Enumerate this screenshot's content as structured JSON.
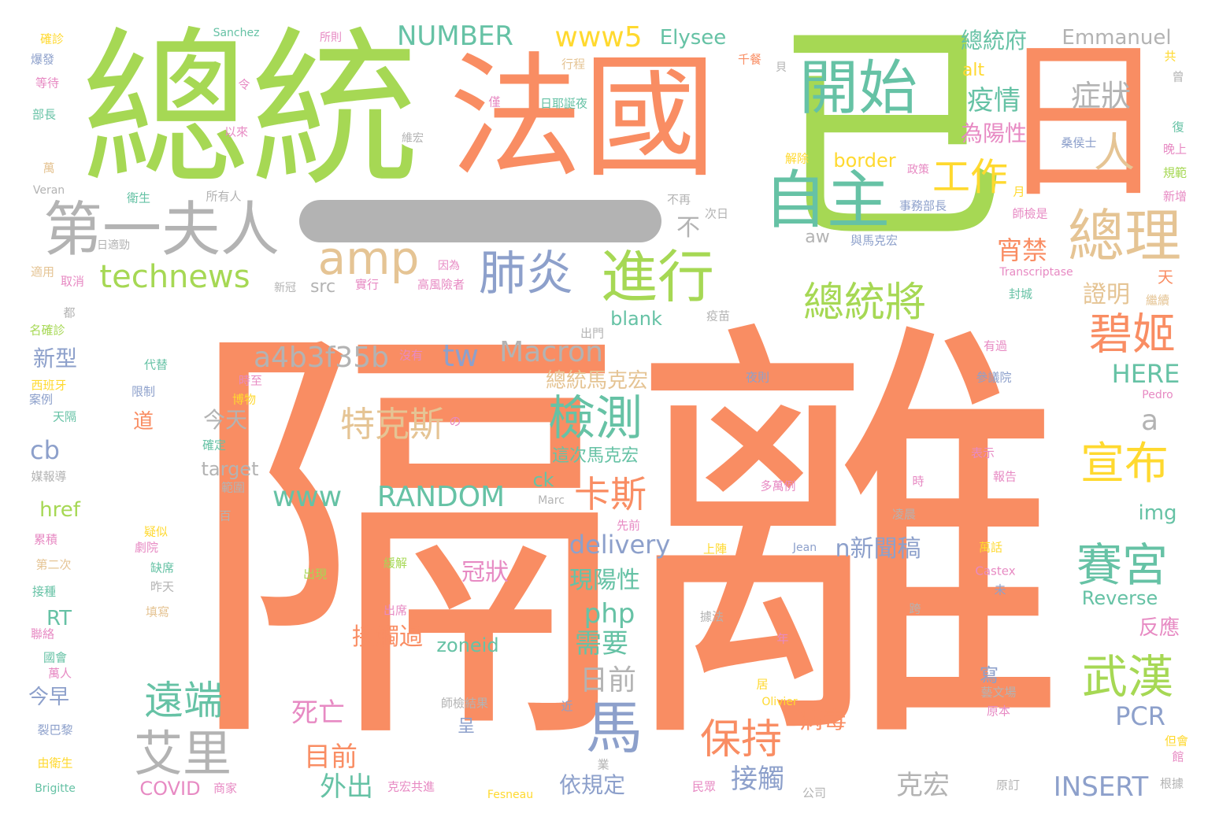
{
  "palette": {
    "orange": "#f98d63",
    "green": "#a6d854",
    "teal": "#66c2a5",
    "blue": "#8da0cb",
    "pink": "#e78ac3",
    "yellow": "#ffd92f",
    "tan": "#e5c494",
    "gray": "#b3b3b3"
  },
  "words": [
    {
      "text": "隔離",
      "color": "orange"
    },
    {
      "text": "已",
      "color": "green"
    },
    {
      "text": "總統",
      "color": "green"
    },
    {
      "text": "法國",
      "color": "orange"
    },
    {
      "text": "日",
      "color": "orange"
    },
    {
      "text": "開始",
      "color": "teal"
    },
    {
      "text": "自主",
      "color": "teal"
    },
    {
      "text": "第一夫人",
      "color": "gray"
    },
    {
      "text": "amp",
      "color": "tan"
    },
    {
      "text": "總理",
      "color": "tan"
    },
    {
      "text": "工作",
      "color": "yellow"
    },
    {
      "text": "人",
      "color": "tan"
    },
    {
      "text": "進行",
      "color": "green"
    },
    {
      "text": "肺炎",
      "color": "blue"
    },
    {
      "text": "technews",
      "color": "green"
    },
    {
      "text": "總統將",
      "color": "green"
    },
    {
      "text": "碧姬",
      "color": "orange"
    },
    {
      "text": "宵禁",
      "color": "orange"
    },
    {
      "text": "證明",
      "color": "tan"
    },
    {
      "text": "症狀",
      "color": "gray"
    },
    {
      "text": "疫情",
      "color": "teal"
    },
    {
      "text": "為陽性",
      "color": "pink"
    },
    {
      "text": "border",
      "color": "yellow"
    },
    {
      "text": "總統府",
      "color": "teal"
    },
    {
      "text": "alt",
      "color": "yellow"
    },
    {
      "text": "Emmanuel",
      "color": "gray"
    },
    {
      "text": "NUMBER",
      "color": "teal"
    },
    {
      "text": "www5",
      "color": "yellow"
    },
    {
      "text": "Elysee",
      "color": "teal"
    },
    {
      "text": "a4b3f35b",
      "color": "gray"
    },
    {
      "text": "tw",
      "color": "blue"
    },
    {
      "text": "Macron",
      "color": "gray"
    },
    {
      "text": "總統馬克宏",
      "color": "tan"
    },
    {
      "text": "檢測",
      "color": "teal"
    },
    {
      "text": "特克斯",
      "color": "tan"
    },
    {
      "text": "宣布",
      "color": "yellow"
    },
    {
      "text": "HERE",
      "color": "teal"
    },
    {
      "text": "a",
      "color": "gray"
    },
    {
      "text": "www",
      "color": "teal"
    },
    {
      "text": "RANDOM",
      "color": "teal"
    },
    {
      "text": "卡斯",
      "color": "orange"
    },
    {
      "text": "賽宮",
      "color": "teal"
    },
    {
      "text": "武漢",
      "color": "green"
    },
    {
      "text": "delivery",
      "color": "blue"
    },
    {
      "text": "n新聞稿",
      "color": "blue"
    },
    {
      "text": "現陽性",
      "color": "teal"
    },
    {
      "text": "冠狀",
      "color": "pink"
    },
    {
      "text": "馬",
      "color": "blue"
    },
    {
      "text": "日前",
      "color": "gray"
    },
    {
      "text": "需要",
      "color": "teal"
    },
    {
      "text": "php",
      "color": "teal"
    },
    {
      "text": "遠端",
      "color": "teal"
    },
    {
      "text": "艾里",
      "color": "gray"
    },
    {
      "text": "保持",
      "color": "orange"
    },
    {
      "text": "接觸",
      "color": "blue"
    },
    {
      "text": "病毒",
      "color": "orange"
    },
    {
      "text": "PCR",
      "color": "blue"
    },
    {
      "text": "INSERT",
      "color": "blue"
    },
    {
      "text": "克宏",
      "color": "gray"
    },
    {
      "text": "目前",
      "color": "orange"
    },
    {
      "text": "外出",
      "color": "teal"
    },
    {
      "text": "依規定",
      "color": "blue"
    },
    {
      "text": "死亡",
      "color": "pink"
    },
    {
      "text": "接觸過",
      "color": "orange"
    },
    {
      "text": "zoneid",
      "color": "teal"
    },
    {
      "text": "COVID",
      "color": "pink"
    },
    {
      "text": "cb",
      "color": "blue"
    },
    {
      "text": "href",
      "color": "green"
    },
    {
      "text": "RT",
      "color": "teal"
    },
    {
      "text": "今早",
      "color": "blue"
    },
    {
      "text": "新型",
      "color": "blue"
    },
    {
      "text": "今天",
      "color": "gray"
    },
    {
      "text": "target",
      "color": "gray"
    },
    {
      "text": "ck",
      "color": "teal"
    },
    {
      "text": "img",
      "color": "teal"
    },
    {
      "text": "Reverse",
      "color": "teal"
    },
    {
      "text": "反應",
      "color": "pink"
    },
    {
      "text": "blank",
      "color": "teal"
    },
    {
      "text": "src",
      "color": "gray"
    },
    {
      "text": "aw",
      "color": "gray"
    },
    {
      "text": "不",
      "color": "gray"
    },
    {
      "text": "Sanchez",
      "color": "teal"
    },
    {
      "text": "所則",
      "color": "pink"
    },
    {
      "text": "確診",
      "color": "yellow"
    },
    {
      "text": "爆發",
      "color": "blue"
    },
    {
      "text": "等待",
      "color": "pink"
    },
    {
      "text": "部長",
      "color": "teal"
    },
    {
      "text": "行程",
      "color": "tan"
    },
    {
      "text": "日耶誕夜",
      "color": "teal"
    },
    {
      "text": "千餐",
      "color": "orange"
    },
    {
      "text": "以來",
      "color": "pink"
    },
    {
      "text": "維宏",
      "color": "gray"
    },
    {
      "text": "桑侯士",
      "color": "blue"
    },
    {
      "text": "Veran",
      "color": "gray"
    },
    {
      "text": "衛生",
      "color": "teal"
    },
    {
      "text": "所有人",
      "color": "gray"
    },
    {
      "text": "解除",
      "color": "yellow"
    },
    {
      "text": "政策",
      "color": "pink"
    },
    {
      "text": "事務部長",
      "color": "blue"
    },
    {
      "text": "與馬克宏",
      "color": "blue"
    },
    {
      "text": "新冠",
      "color": "gray"
    },
    {
      "text": "實行",
      "color": "pink"
    },
    {
      "text": "高風險者",
      "color": "pink"
    },
    {
      "text": "因為",
      "color": "pink"
    },
    {
      "text": "Transcriptase",
      "color": "pink"
    },
    {
      "text": "封城",
      "color": "teal"
    },
    {
      "text": "名確診",
      "color": "green"
    },
    {
      "text": "西班牙",
      "color": "yellow"
    },
    {
      "text": "案例",
      "color": "blue"
    },
    {
      "text": "天隔",
      "color": "teal"
    },
    {
      "text": "媒報導",
      "color": "gray"
    },
    {
      "text": "累積",
      "color": "pink"
    },
    {
      "text": "第二次",
      "color": "tan"
    },
    {
      "text": "接種",
      "color": "teal"
    },
    {
      "text": "聯絡",
      "color": "pink"
    },
    {
      "text": "國會",
      "color": "teal"
    },
    {
      "text": "萬人",
      "color": "pink"
    },
    {
      "text": "裂巴黎",
      "color": "blue"
    },
    {
      "text": "由衛生",
      "color": "yellow"
    },
    {
      "text": "Brigitte",
      "color": "teal"
    },
    {
      "text": "代替",
      "color": "teal"
    },
    {
      "text": "限制",
      "color": "blue"
    },
    {
      "text": "時至",
      "color": "pink"
    },
    {
      "text": "博物",
      "color": "yellow"
    },
    {
      "text": "道",
      "color": "orange"
    },
    {
      "text": "確定",
      "color": "teal"
    },
    {
      "text": "範圍",
      "color": "gray"
    },
    {
      "text": "疑似",
      "color": "yellow"
    },
    {
      "text": "劇院",
      "color": "pink"
    },
    {
      "text": "缺席",
      "color": "teal"
    },
    {
      "text": "昨天",
      "color": "gray"
    },
    {
      "text": "填寫",
      "color": "tan"
    },
    {
      "text": "出現",
      "color": "green"
    },
    {
      "text": "緩解",
      "color": "green"
    },
    {
      "text": "出席",
      "color": "pink"
    },
    {
      "text": "師檢結果",
      "color": "gray"
    },
    {
      "text": "呈",
      "color": "blue"
    },
    {
      "text": "Marc",
      "color": "gray"
    },
    {
      "text": "先前",
      "color": "pink"
    },
    {
      "text": "上陣",
      "color": "yellow"
    },
    {
      "text": "多萬例",
      "color": "pink"
    },
    {
      "text": "Jean",
      "color": "blue"
    },
    {
      "text": "據法",
      "color": "gray"
    },
    {
      "text": "年",
      "color": "pink"
    },
    {
      "text": "Olivier",
      "color": "yellow"
    },
    {
      "text": "凌晨",
      "color": "gray"
    },
    {
      "text": "Castex",
      "color": "pink"
    },
    {
      "text": "報告",
      "color": "pink"
    },
    {
      "text": "表示",
      "color": "pink"
    },
    {
      "text": "Pedro",
      "color": "pink"
    },
    {
      "text": "原本",
      "color": "pink"
    },
    {
      "text": "根據",
      "color": "gray"
    },
    {
      "text": "Fesneau",
      "color": "yellow"
    },
    {
      "text": "民眾",
      "color": "pink"
    },
    {
      "text": "原訂",
      "color": "gray"
    },
    {
      "text": "公司",
      "color": "gray"
    },
    {
      "text": "商家",
      "color": "pink"
    },
    {
      "text": "克宏共進",
      "color": "pink"
    },
    {
      "text": "百",
      "color": "gray"
    },
    {
      "text": "月",
      "color": "yellow"
    },
    {
      "text": "師檢是",
      "color": "pink"
    },
    {
      "text": "有過",
      "color": "pink"
    },
    {
      "text": "繼續",
      "color": "tan"
    },
    {
      "text": "夜則",
      "color": "blue"
    },
    {
      "text": "參議院",
      "color": "blue"
    },
    {
      "text": "天",
      "color": "orange"
    },
    {
      "text": "新增",
      "color": "pink"
    },
    {
      "text": "規範",
      "color": "green"
    },
    {
      "text": "晚上",
      "color": "pink"
    },
    {
      "text": "復",
      "color": "teal"
    },
    {
      "text": "疫苗",
      "color": "gray"
    },
    {
      "text": "出門",
      "color": "gray"
    },
    {
      "text": "沒有",
      "color": "pink"
    },
    {
      "text": "這次馬克宏",
      "color": "teal"
    },
    {
      "text": "日適勁",
      "color": "gray"
    },
    {
      "text": "適用",
      "color": "tan"
    },
    {
      "text": "取消",
      "color": "pink"
    },
    {
      "text": "都",
      "color": "gray"
    },
    {
      "text": "不再",
      "color": "gray"
    },
    {
      "text": "次日",
      "color": "gray"
    },
    {
      "text": "萬",
      "color": "tan"
    },
    {
      "text": "令",
      "color": "pink"
    },
    {
      "text": "貝",
      "color": "gray"
    },
    {
      "text": "僅",
      "color": "pink"
    },
    {
      "text": "共",
      "color": "yellow"
    },
    {
      "text": "曾",
      "color": "gray"
    },
    {
      "text": "時",
      "color": "pink"
    },
    {
      "text": "館",
      "color": "pink"
    },
    {
      "text": "但會",
      "color": "yellow"
    },
    {
      "text": "未",
      "color": "blue"
    },
    {
      "text": "藝文場",
      "color": "gray"
    },
    {
      "text": "寫",
      "color": "blue"
    },
    {
      "text": "近",
      "color": "blue"
    },
    {
      "text": "業",
      "color": "gray"
    },
    {
      "text": "居",
      "color": "yellow"
    },
    {
      "text": "跨",
      "color": "gray"
    },
    {
      "text": "萬話",
      "color": "yellow"
    },
    {
      "text": "の",
      "color": "pink"
    }
  ]
}
